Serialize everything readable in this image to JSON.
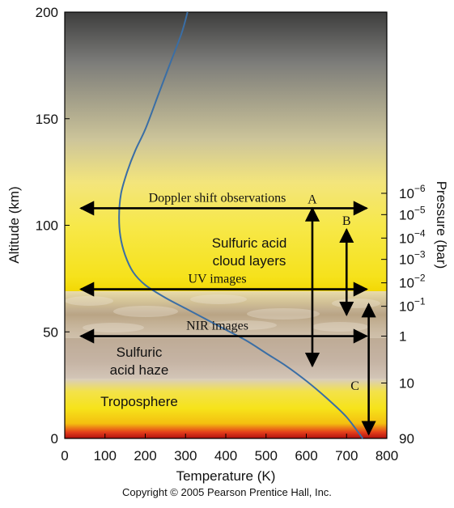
{
  "chart_data": {
    "type": "line",
    "xlabel": "Temperature (K)",
    "ylabel": "Altitude (km)",
    "y2label": "Pressure (bar)",
    "xlim": [
      0,
      800
    ],
    "ylim": [
      0,
      200
    ],
    "x_ticks": [
      0,
      100,
      200,
      300,
      400,
      500,
      600,
      700,
      800
    ],
    "y_ticks": [
      0,
      50,
      100,
      150,
      200
    ],
    "pressure_ticks": [
      {
        "altitude": 0,
        "base": "90",
        "exp": ""
      },
      {
        "altitude": 26,
        "base": "10",
        "exp": ""
      },
      {
        "altitude": 48,
        "base": "1",
        "exp": ""
      },
      {
        "altitude": 62,
        "base": "10",
        "exp": "−1"
      },
      {
        "altitude": 73,
        "base": "10",
        "exp": "−2"
      },
      {
        "altitude": 84,
        "base": "10",
        "exp": "−3"
      },
      {
        "altitude": 94,
        "base": "10",
        "exp": "−4"
      },
      {
        "altitude": 105,
        "base": "10",
        "exp": "−5"
      },
      {
        "altitude": 115,
        "base": "10",
        "exp": "−6"
      }
    ],
    "series": [
      {
        "x": [
          740,
          700,
          650,
          600,
          550,
          500,
          450,
          400,
          350,
          300,
          250,
          200,
          170,
          150,
          138,
          135,
          140,
          155,
          175,
          200,
          230,
          260,
          290,
          305
        ],
        "y": [
          0,
          10,
          19,
          27,
          34,
          40,
          46,
          51,
          56,
          61,
          66,
          72,
          78,
          86,
          95,
          105,
          115,
          125,
          135,
          145,
          160,
          175,
          190,
          200
        ],
        "color": "#3a6ea5"
      }
    ],
    "annotations": {
      "regions": [
        "Sulfuric acid",
        "cloud layers",
        "Sulfuric",
        "acid haze",
        "Troposphere"
      ],
      "observations": [
        {
          "label": "Doppler shift observations",
          "altitude": 108,
          "x_from": 40,
          "x_to": 750
        },
        {
          "label": "UV images",
          "altitude": 70,
          "x_from": 40,
          "x_to": 750
        },
        {
          "label": "NIR images",
          "altitude": 48,
          "x_from": 40,
          "x_to": 750
        }
      ],
      "profiles": [
        {
          "label": "A",
          "x": 615,
          "alt_from": 34,
          "alt_to": 108
        },
        {
          "label": "B",
          "x": 700,
          "alt_from": 58,
          "alt_to": 98
        },
        {
          "label": "C",
          "x": 755,
          "alt_from": 2,
          "alt_to": 63
        }
      ]
    }
  },
  "copyright": "Copyright © 2005 Pearson Prentice Hall, Inc."
}
